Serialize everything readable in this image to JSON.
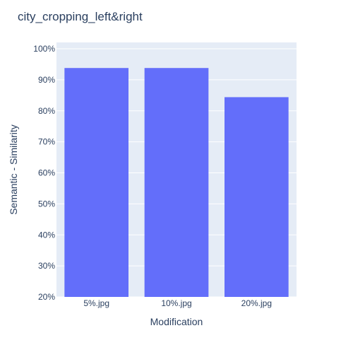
{
  "chart_data": {
    "type": "bar",
    "title": "city_cropping_left&right",
    "xlabel": "Modification",
    "ylabel": "Semantic - Similarity",
    "categories": [
      "5%.jpg",
      "10%.jpg",
      "20%.jpg"
    ],
    "values": [
      93.8,
      93.8,
      84.4
    ],
    "ylim": [
      20,
      100
    ],
    "yticks": [
      20,
      30,
      40,
      50,
      60,
      70,
      80,
      90,
      100
    ],
    "ytick_labels": [
      "20%",
      "30%",
      "40%",
      "50%",
      "60%",
      "70%",
      "80%",
      "90%",
      "100%"
    ],
    "grid": true,
    "legend": false,
    "colors": {
      "bar": "#636efa",
      "plot_bg": "#e5ecf6",
      "grid": "#ffffff",
      "text": "#2a3f5f"
    }
  }
}
